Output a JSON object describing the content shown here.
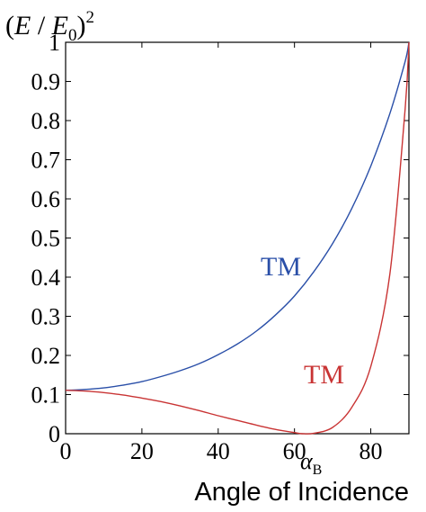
{
  "chart_data": {
    "type": "line",
    "xlabel": "Angle of Incidence",
    "ylabel": {
      "open": "(",
      "E": "E",
      "slash": " / ",
      "E0": "E",
      "E0_sub": "0",
      "close": ")",
      "power": "2"
    },
    "xlim": [
      0,
      90
    ],
    "ylim": [
      0,
      1
    ],
    "x_ticks": [
      "0",
      "20",
      "40",
      "60",
      "80"
    ],
    "x_tick_values": [
      0,
      20,
      40,
      60,
      80
    ],
    "y_ticks": [
      "0",
      "0.1",
      "0.2",
      "0.3",
      "0.4",
      "0.5",
      "0.6",
      "0.7",
      "0.8",
      "0.9",
      "1"
    ],
    "y_tick_values": [
      0,
      0.1,
      0.2,
      0.3,
      0.4,
      0.5,
      0.6,
      0.7,
      0.8,
      0.9,
      1
    ],
    "annotation": {
      "symbol": "α",
      "subscript": "B",
      "color": "#2e7d5e"
    },
    "grid": false,
    "series": [
      {
        "name": "TM",
        "color": "#2a4fa8",
        "x": [
          0,
          5,
          10,
          15,
          20,
          25,
          30,
          35,
          40,
          45,
          50,
          55,
          60,
          65,
          70,
          75,
          80,
          85,
          89,
          90
        ],
        "y": [
          0.111,
          0.113,
          0.117,
          0.124,
          0.133,
          0.146,
          0.161,
          0.179,
          0.202,
          0.229,
          0.262,
          0.303,
          0.352,
          0.413,
          0.486,
          0.575,
          0.684,
          0.818,
          0.951,
          1.0
        ]
      },
      {
        "name": "TM",
        "color": "#c93434",
        "x": [
          0,
          5,
          10,
          15,
          20,
          25,
          30,
          35,
          40,
          45,
          50,
          55,
          60,
          62,
          65,
          70,
          75,
          80,
          85,
          89,
          90
        ],
        "y": [
          0.111,
          0.109,
          0.105,
          0.099,
          0.091,
          0.082,
          0.071,
          0.059,
          0.046,
          0.034,
          0.022,
          0.011,
          0.003,
          0.0,
          0.001,
          0.016,
          0.067,
          0.172,
          0.408,
          0.83,
          1.0
        ]
      }
    ],
    "series_labels": [
      {
        "text": "TM",
        "color": "#2a4fa8"
      },
      {
        "text": "TM",
        "color": "#c93434"
      }
    ]
  }
}
